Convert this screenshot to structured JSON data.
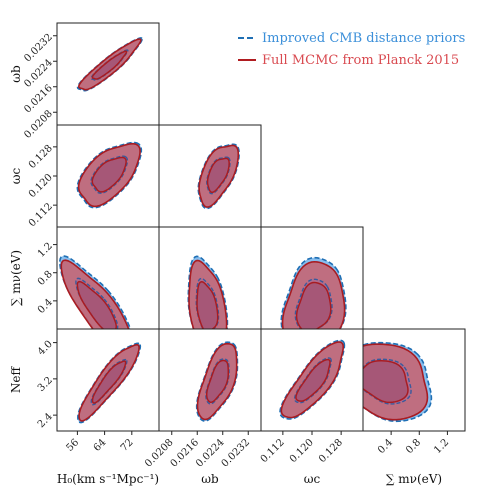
{
  "chart_data": {
    "type": "corner-contour",
    "parameters": [
      {
        "key": "H0",
        "label": "H_0(km s^-1Mpc^-1)",
        "range": [
          50,
          80
        ],
        "ticks": [
          56,
          64,
          72
        ]
      },
      {
        "key": "omega_b",
        "label": "ω_b",
        "range": [
          0.0204,
          0.0236
        ],
        "ticks": [
          0.0208,
          0.0216,
          0.0224,
          0.0232
        ]
      },
      {
        "key": "omega_c",
        "label": "ω_c",
        "range": [
          0.106,
          0.134
        ],
        "ticks": [
          0.112,
          0.12,
          0.128
        ]
      },
      {
        "key": "sum_mnu",
        "label": "Σ m_ν(eV)",
        "range": [
          0,
          1.45
        ],
        "ticks": [
          0.4,
          0.8,
          1.2
        ]
      },
      {
        "key": "N_eff",
        "label": "N_eff",
        "range": [
          2.05,
          4.3
        ],
        "ticks": [
          2.4,
          3.2,
          4.0
        ]
      }
    ],
    "tick_text": {
      "H0": [
        "56",
        "64",
        "72"
      ],
      "omega_b": [
        "0.0208",
        "0.0216",
        "0.0224",
        "0.0232"
      ],
      "omega_c": [
        "0.112",
        "0.120",
        "0.128"
      ],
      "sum_mnu": [
        "0.4",
        "0.8",
        "1.2"
      ],
      "N_eff": [
        "2.4",
        "3.2",
        "4.0"
      ]
    },
    "axis_labels": {
      "H0": "H₀(km s⁻¹Mpc⁻¹)",
      "omega_b": "ωb",
      "omega_c": "ωc",
      "sum_mnu": "∑ mν(eV)",
      "N_eff": "Neff"
    },
    "series": [
      {
        "name": "Improved CMB distance priors",
        "color": "#1f6fb4",
        "fill": "#5fa8e8",
        "linestyle": "dashed"
      },
      {
        "name": "Full MCMC from Planck 2015",
        "color": "#b01c20",
        "fill": "#c9606c",
        "linestyle": "solid"
      }
    ],
    "legend_position": "top-right",
    "contours": [
      {
        "row": 1,
        "col": 0,
        "center": [
          65.3,
          0.02225
        ],
        "sigma": [
          3.6,
          0.00032
        ],
        "rho": 0.92
      },
      {
        "row": 2,
        "col": 0,
        "center": [
          65.3,
          0.1205
        ],
        "sigma": [
          3.6,
          0.0034
        ],
        "rho": 0.55
      },
      {
        "row": 2,
        "col": 1,
        "center": [
          0.02225,
          0.1205
        ],
        "sigma": [
          0.00025,
          0.0034
        ],
        "rho": 0.55
      },
      {
        "row": 3,
        "col": 0,
        "center": [
          61.8,
          0.3
        ],
        "sigma": [
          4.2,
          0.26
        ],
        "rho": -0.82
      },
      {
        "row": 3,
        "col": 1,
        "center": [
          0.0219,
          0.3
        ],
        "sigma": [
          0.00024,
          0.26
        ],
        "rho": -0.3
      },
      {
        "row": 3,
        "col": 2,
        "center": [
          0.1205,
          0.3
        ],
        "sigma": [
          0.0034,
          0.26
        ],
        "rho": 0.2
      },
      {
        "row": 4,
        "col": 0,
        "center": [
          65.3,
          3.15
        ],
        "sigma": [
          3.6,
          0.34
        ],
        "rho": 0.9
      },
      {
        "row": 4,
        "col": 1,
        "center": [
          0.02225,
          3.15
        ],
        "sigma": [
          0.00025,
          0.34
        ],
        "rho": 0.6
      },
      {
        "row": 4,
        "col": 2,
        "center": [
          0.1205,
          3.15
        ],
        "sigma": [
          0.0034,
          0.34
        ],
        "rho": 0.8
      },
      {
        "row": 4,
        "col": 3,
        "center": [
          0.3,
          3.15
        ],
        "sigma": [
          0.26,
          0.34
        ],
        "rho": -0.2
      }
    ]
  }
}
